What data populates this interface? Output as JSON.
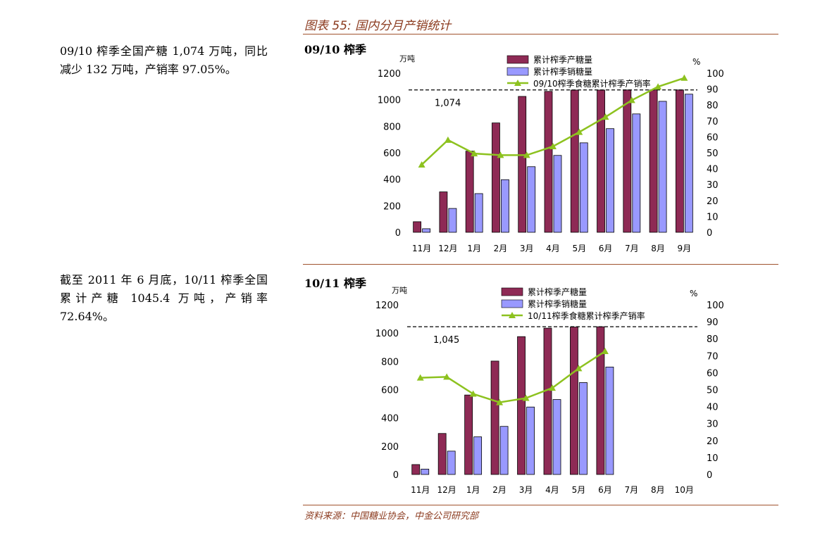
{
  "figure_title": "图表 55: 国内分月产销统计",
  "source": "资料来源：中国糖业协会，中金公司研究部",
  "left_texts": [
    "09/10 榨季全国产糖 1,074 万吨，同比减少 132 万吨，产销率 97.05%。",
    "截至 2011 年 6 月底，10/11 榨季全国累计产糖 1045.4 万吨，产销率 72.64%。"
  ],
  "colors": {
    "production": "#8e2a55",
    "sales": "#9999ff",
    "ratio": "#8dc21f",
    "accent": "#a0522d",
    "title": "#8b3a1e"
  },
  "chart_data": [
    {
      "type": "bar",
      "title": "09/10 榨季",
      "ylabel": "万吨",
      "y2label": "%",
      "ylim": [
        0,
        1200
      ],
      "y2lim": [
        0,
        100
      ],
      "yticks": [
        0,
        200,
        400,
        600,
        800,
        1000,
        1200
      ],
      "y2ticks": [
        0,
        10,
        20,
        30,
        40,
        50,
        60,
        70,
        80,
        90,
        100
      ],
      "categories": [
        "11月",
        "12月",
        "1月",
        "2月",
        "3月",
        "4月",
        "5月",
        "6月",
        "7月",
        "8月",
        "9月"
      ],
      "series": [
        {
          "name": "累计榨季产糖量",
          "kind": "bar",
          "values": [
            80,
            305,
            612,
            825,
            1025,
            1063,
            1073,
            1073,
            1074,
            1074,
            1074
          ]
        },
        {
          "name": "累计榨季销糖量",
          "kind": "bar",
          "values": [
            27,
            180,
            292,
            397,
            495,
            580,
            675,
            782,
            893,
            988,
            1042
          ]
        },
        {
          "name": "09/10榨季食糖累计榨季产销率",
          "kind": "line",
          "axis": "right",
          "values": [
            42.5,
            58,
            49.5,
            48.5,
            48.5,
            54,
            63,
            72.5,
            83,
            91.5,
            97
          ]
        }
      ],
      "reference_line": {
        "value": 1074,
        "label": "1,074"
      },
      "legend": "top"
    },
    {
      "type": "bar",
      "title": "10/11 榨季",
      "ylabel": "万吨",
      "y2label": "%",
      "ylim": [
        0,
        1200
      ],
      "y2lim": [
        0,
        100
      ],
      "yticks": [
        0,
        200,
        400,
        600,
        800,
        1000,
        1200
      ],
      "y2ticks": [
        0,
        10,
        20,
        30,
        40,
        50,
        60,
        70,
        80,
        90,
        100
      ],
      "categories": [
        "11月",
        "12月",
        "1月",
        "2月",
        "3月",
        "4月",
        "5月",
        "6月",
        "7月",
        "8月",
        "10月"
      ],
      "series": [
        {
          "name": "累计榨季产糖量",
          "kind": "bar",
          "values": [
            70,
            290,
            562,
            802,
            975,
            1035,
            1043,
            1045,
            null,
            null,
            null
          ]
        },
        {
          "name": "累计榨季销糖量",
          "kind": "bar",
          "values": [
            38,
            165,
            266,
            340,
            477,
            530,
            650,
            760,
            null,
            null,
            null
          ]
        },
        {
          "name": "10/11榨季食糖累计榨季产销率",
          "kind": "line",
          "axis": "right",
          "values": [
            57,
            57.5,
            47.5,
            42.5,
            45,
            51,
            62.5,
            72.6,
            null,
            null,
            null
          ]
        }
      ],
      "reference_line": {
        "value": 1045,
        "label": "1,045"
      },
      "legend": "top"
    }
  ]
}
